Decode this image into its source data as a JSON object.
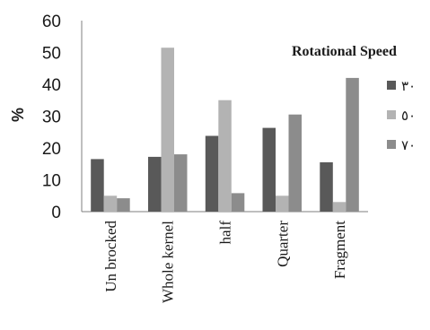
{
  "chart_data": {
    "type": "bar",
    "categories": [
      "Un brocked",
      "Whole kernel",
      "half",
      "Quarter",
      "Fragment"
    ],
    "series": [
      {
        "name": "٣٠",
        "color": "#595959",
        "values": [
          16.5,
          17.2,
          23.8,
          26.3,
          15.5
        ]
      },
      {
        "name": "٥٠",
        "color": "#b3b3b3",
        "values": [
          5.0,
          51.5,
          35.0,
          5.0,
          3.0
        ]
      },
      {
        "name": "٧٠",
        "color": "#8c8c8c",
        "values": [
          4.2,
          18.0,
          5.8,
          30.5,
          42.0
        ]
      }
    ],
    "ylabel": "%",
    "ylim": [
      0,
      60
    ],
    "yticks": [
      "0",
      "10",
      "20",
      "30",
      "40",
      "50",
      "60"
    ],
    "legend_title": "Rotational Speed",
    "legend_position": "right",
    "grid": false
  }
}
